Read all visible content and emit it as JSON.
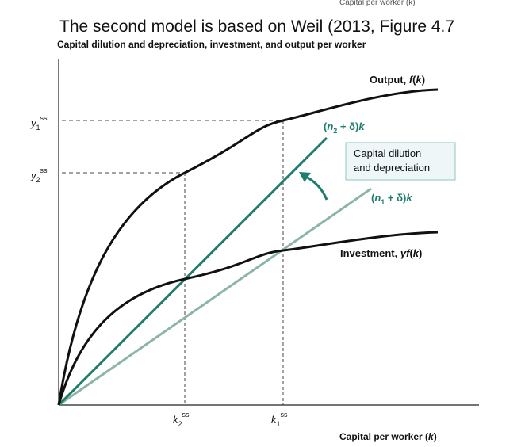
{
  "header": {
    "cut_caption": "Capital per worker (k)",
    "title": "The second model is based on Weil (2013, Figure 4.7"
  },
  "figure": {
    "y_axis_title": "Capital dilution and depreciation, investment, and output per worker",
    "x_axis_title": [
      "Capital per worker (",
      "k",
      ")"
    ],
    "output_label": [
      "Output, ",
      "f",
      "(",
      "k",
      ")"
    ],
    "investment_label": [
      "Investment, ",
      "γ",
      "f",
      "(",
      "k",
      ")"
    ],
    "n2_label": [
      "(",
      "n",
      "2",
      " + δ)",
      "k"
    ],
    "n1_label": [
      "(",
      "n",
      "1",
      " + δ)",
      "k"
    ],
    "callout": [
      "Capital dilution",
      "and depreciation"
    ],
    "y1": [
      "y",
      "1",
      "ss"
    ],
    "y2": [
      "y",
      "2",
      "ss"
    ],
    "k2": [
      "k",
      "2",
      "ss"
    ],
    "k1": [
      "k",
      "1",
      "ss"
    ]
  }
}
